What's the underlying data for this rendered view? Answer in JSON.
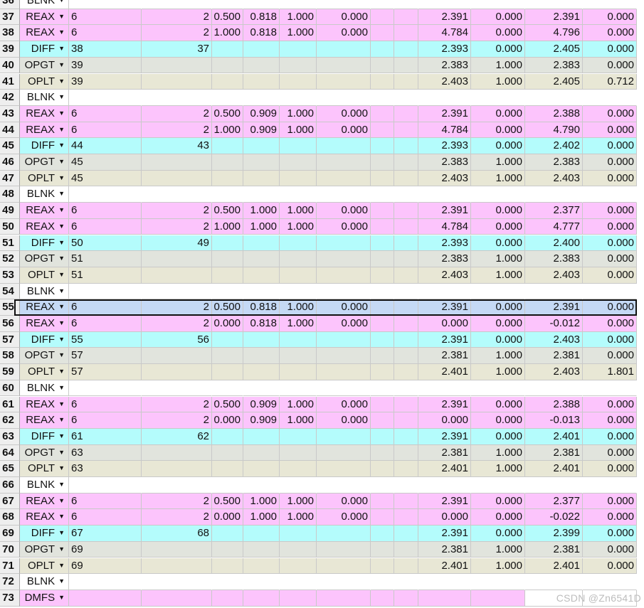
{
  "colors": {
    "REAX": "#fcc4fc",
    "DIFF": "#b4fcfc",
    "OPGT": "#e1e4dd",
    "OPLT": "#e8e7d5",
    "BLNK": "#ffffff",
    "DMFS": "#fcc4fc",
    "selected": "#c5d9f5",
    "rownum": "#eeeeee"
  },
  "rows": [
    {
      "n": "36",
      "op": "BLNK",
      "c": []
    },
    {
      "n": "37",
      "op": "REAX",
      "c": [
        "6",
        "2",
        "0.500",
        "0.818",
        "1.000",
        "0.000",
        "",
        "",
        "2.391",
        "0.000",
        "2.391",
        "0.000"
      ]
    },
    {
      "n": "38",
      "op": "REAX",
      "c": [
        "6",
        "2",
        "1.000",
        "0.818",
        "1.000",
        "0.000",
        "",
        "",
        "4.784",
        "0.000",
        "4.796",
        "0.000"
      ]
    },
    {
      "n": "39",
      "op": "DIFF",
      "c": [
        "38",
        "37",
        "",
        "",
        "",
        "",
        "",
        "",
        "2.393",
        "0.000",
        "2.405",
        "0.000"
      ]
    },
    {
      "n": "40",
      "op": "OPGT",
      "c": [
        "39",
        "",
        "",
        "",
        "",
        "",
        "",
        "",
        "2.383",
        "1.000",
        "2.383",
        "0.000"
      ]
    },
    {
      "n": "41",
      "op": "OPLT",
      "c": [
        "39",
        "",
        "",
        "",
        "",
        "",
        "",
        "",
        "2.403",
        "1.000",
        "2.405",
        "0.712"
      ]
    },
    {
      "n": "42",
      "op": "BLNK",
      "c": []
    },
    {
      "n": "43",
      "op": "REAX",
      "c": [
        "6",
        "2",
        "0.500",
        "0.909",
        "1.000",
        "0.000",
        "",
        "",
        "2.391",
        "0.000",
        "2.388",
        "0.000"
      ]
    },
    {
      "n": "44",
      "op": "REAX",
      "c": [
        "6",
        "2",
        "1.000",
        "0.909",
        "1.000",
        "0.000",
        "",
        "",
        "4.784",
        "0.000",
        "4.790",
        "0.000"
      ]
    },
    {
      "n": "45",
      "op": "DIFF",
      "c": [
        "44",
        "43",
        "",
        "",
        "",
        "",
        "",
        "",
        "2.393",
        "0.000",
        "2.402",
        "0.000"
      ]
    },
    {
      "n": "46",
      "op": "OPGT",
      "c": [
        "45",
        "",
        "",
        "",
        "",
        "",
        "",
        "",
        "2.383",
        "1.000",
        "2.383",
        "0.000"
      ]
    },
    {
      "n": "47",
      "op": "OPLT",
      "c": [
        "45",
        "",
        "",
        "",
        "",
        "",
        "",
        "",
        "2.403",
        "1.000",
        "2.403",
        "0.000"
      ]
    },
    {
      "n": "48",
      "op": "BLNK",
      "c": []
    },
    {
      "n": "49",
      "op": "REAX",
      "c": [
        "6",
        "2",
        "0.500",
        "1.000",
        "1.000",
        "0.000",
        "",
        "",
        "2.391",
        "0.000",
        "2.377",
        "0.000"
      ]
    },
    {
      "n": "50",
      "op": "REAX",
      "c": [
        "6",
        "2",
        "1.000",
        "1.000",
        "1.000",
        "0.000",
        "",
        "",
        "4.784",
        "0.000",
        "4.777",
        "0.000"
      ]
    },
    {
      "n": "51",
      "op": "DIFF",
      "c": [
        "50",
        "49",
        "",
        "",
        "",
        "",
        "",
        "",
        "2.393",
        "0.000",
        "2.400",
        "0.000"
      ]
    },
    {
      "n": "52",
      "op": "OPGT",
      "c": [
        "51",
        "",
        "",
        "",
        "",
        "",
        "",
        "",
        "2.383",
        "1.000",
        "2.383",
        "0.000"
      ]
    },
    {
      "n": "53",
      "op": "OPLT",
      "c": [
        "51",
        "",
        "",
        "",
        "",
        "",
        "",
        "",
        "2.403",
        "1.000",
        "2.403",
        "0.000"
      ]
    },
    {
      "n": "54",
      "op": "BLNK",
      "c": []
    },
    {
      "n": "55",
      "op": "REAX",
      "c": [
        "6",
        "2",
        "0.500",
        "0.818",
        "1.000",
        "0.000",
        "",
        "",
        "2.391",
        "0.000",
        "2.391",
        "0.000"
      ],
      "selected": true
    },
    {
      "n": "56",
      "op": "REAX",
      "c": [
        "6",
        "2",
        "0.000",
        "0.818",
        "1.000",
        "0.000",
        "",
        "",
        "0.000",
        "0.000",
        "-0.012",
        "0.000"
      ]
    },
    {
      "n": "57",
      "op": "DIFF",
      "c": [
        "55",
        "56",
        "",
        "",
        "",
        "",
        "",
        "",
        "2.391",
        "0.000",
        "2.403",
        "0.000"
      ]
    },
    {
      "n": "58",
      "op": "OPGT",
      "c": [
        "57",
        "",
        "",
        "",
        "",
        "",
        "",
        "",
        "2.381",
        "1.000",
        "2.381",
        "0.000"
      ]
    },
    {
      "n": "59",
      "op": "OPLT",
      "c": [
        "57",
        "",
        "",
        "",
        "",
        "",
        "",
        "",
        "2.401",
        "1.000",
        "2.403",
        "1.801"
      ]
    },
    {
      "n": "60",
      "op": "BLNK",
      "c": []
    },
    {
      "n": "61",
      "op": "REAX",
      "c": [
        "6",
        "2",
        "0.500",
        "0.909",
        "1.000",
        "0.000",
        "",
        "",
        "2.391",
        "0.000",
        "2.388",
        "0.000"
      ]
    },
    {
      "n": "62",
      "op": "REAX",
      "c": [
        "6",
        "2",
        "0.000",
        "0.909",
        "1.000",
        "0.000",
        "",
        "",
        "0.000",
        "0.000",
        "-0.013",
        "0.000"
      ]
    },
    {
      "n": "63",
      "op": "DIFF",
      "c": [
        "61",
        "62",
        "",
        "",
        "",
        "",
        "",
        "",
        "2.391",
        "0.000",
        "2.401",
        "0.000"
      ]
    },
    {
      "n": "64",
      "op": "OPGT",
      "c": [
        "63",
        "",
        "",
        "",
        "",
        "",
        "",
        "",
        "2.381",
        "1.000",
        "2.381",
        "0.000"
      ]
    },
    {
      "n": "65",
      "op": "OPLT",
      "c": [
        "63",
        "",
        "",
        "",
        "",
        "",
        "",
        "",
        "2.401",
        "1.000",
        "2.401",
        "0.000"
      ]
    },
    {
      "n": "66",
      "op": "BLNK",
      "c": []
    },
    {
      "n": "67",
      "op": "REAX",
      "c": [
        "6",
        "2",
        "0.500",
        "1.000",
        "1.000",
        "0.000",
        "",
        "",
        "2.391",
        "0.000",
        "2.377",
        "0.000"
      ]
    },
    {
      "n": "68",
      "op": "REAX",
      "c": [
        "6",
        "2",
        "0.000",
        "1.000",
        "1.000",
        "0.000",
        "",
        "",
        "0.000",
        "0.000",
        "-0.022",
        "0.000"
      ]
    },
    {
      "n": "69",
      "op": "DIFF",
      "c": [
        "67",
        "68",
        "",
        "",
        "",
        "",
        "",
        "",
        "2.391",
        "0.000",
        "2.399",
        "0.000"
      ]
    },
    {
      "n": "70",
      "op": "OPGT",
      "c": [
        "69",
        "",
        "",
        "",
        "",
        "",
        "",
        "",
        "2.381",
        "1.000",
        "2.381",
        "0.000"
      ]
    },
    {
      "n": "71",
      "op": "OPLT",
      "c": [
        "69",
        "",
        "",
        "",
        "",
        "",
        "",
        "",
        "2.401",
        "1.000",
        "2.401",
        "0.000"
      ]
    },
    {
      "n": "72",
      "op": "BLNK",
      "c": []
    },
    {
      "n": "73",
      "op": "DMFS",
      "c": []
    }
  ],
  "watermark": "CSDN @Zn6541D"
}
